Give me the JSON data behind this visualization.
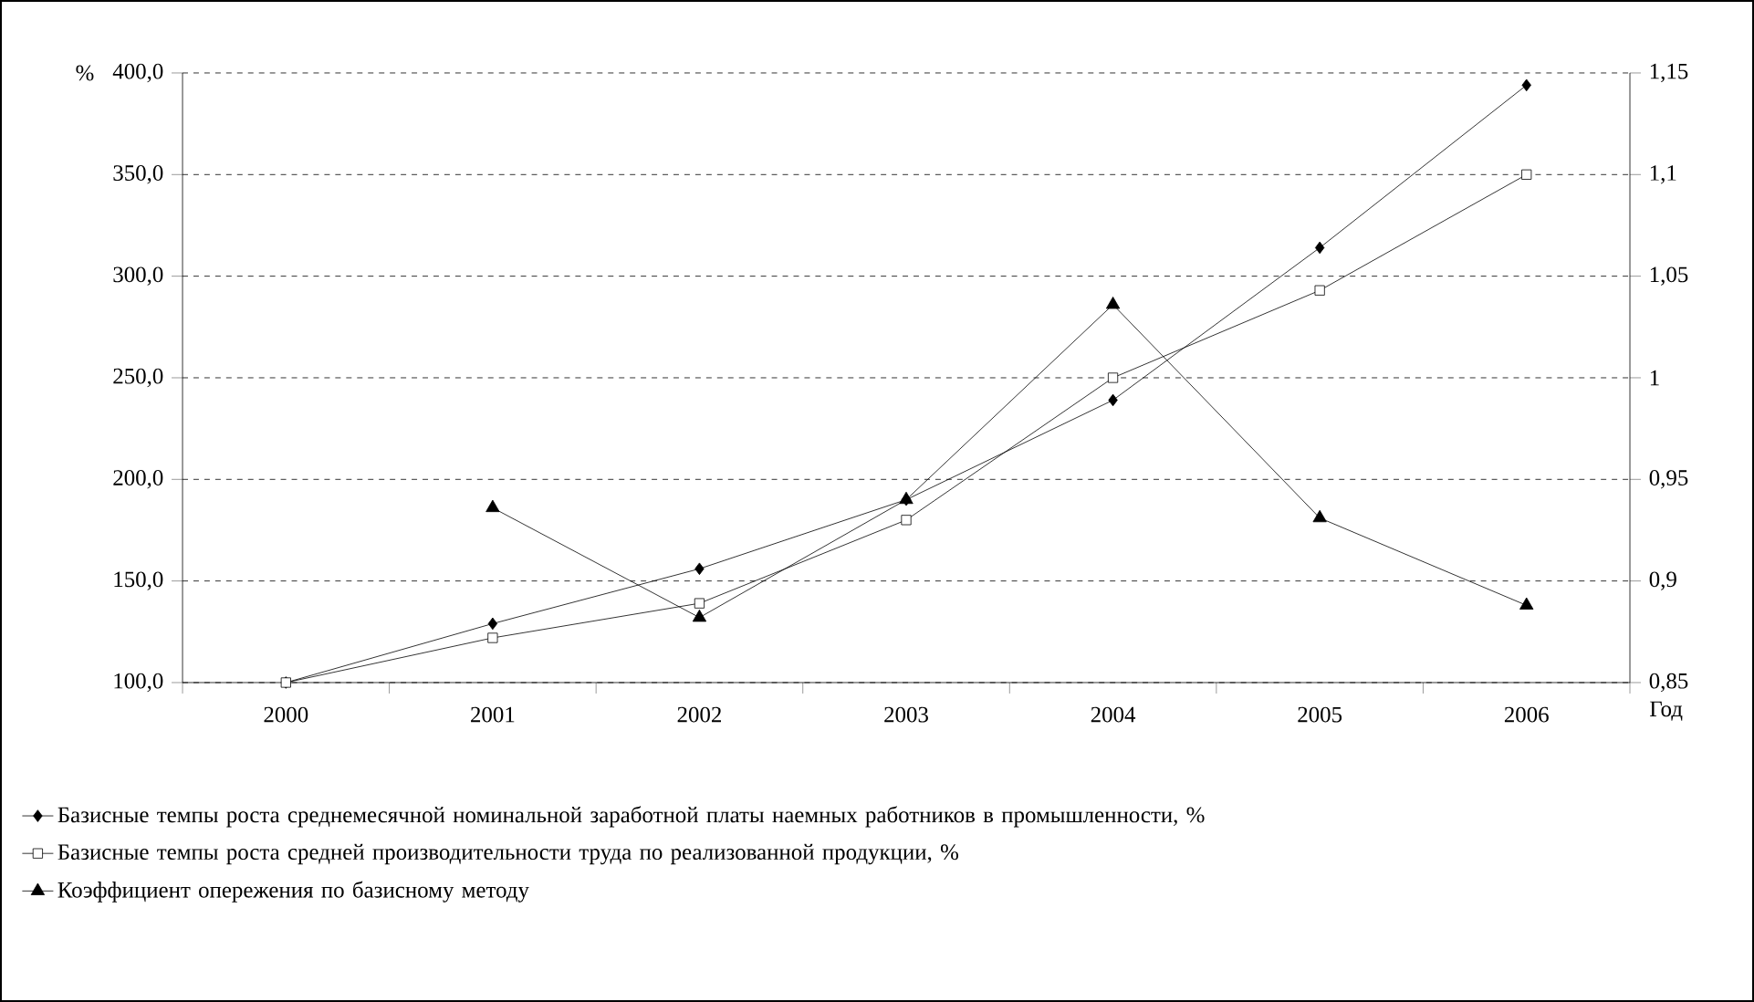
{
  "chart_data": {
    "type": "line",
    "xlabel": "Год",
    "ylabel": "%",
    "categories": [
      "2000",
      "2001",
      "2002",
      "2003",
      "2004",
      "2005",
      "2006"
    ],
    "series": [
      {
        "name": "Базисные темпы роста среднемесячной номинальной заработной платы наемных работников в промышленности, %",
        "color": "#000000",
        "marker": "diamond",
        "values": [
          100,
          129,
          156,
          190,
          239,
          314,
          394
        ]
      },
      {
        "name": "Базисные темпы роста средней производительности труда по реализованной продукции,  %",
        "color": "#000000",
        "marker": "square",
        "values": [
          100,
          122,
          139,
          180,
          250,
          293,
          350
        ]
      },
      {
        "name": "Коэффициент опережения по базисному методу",
        "color": "#000000",
        "marker": "triangle",
        "axis": "y2",
        "values": [
          null,
          0.936,
          0.882,
          0.94,
          1.036,
          0.931,
          0.888
        ]
      }
    ],
    "ylim": [
      100,
      400
    ],
    "yticks": [
      {
        "value": 100,
        "label": "100,0"
      },
      {
        "value": 150,
        "label": "150,0"
      },
      {
        "value": 200,
        "label": "200,0"
      },
      {
        "value": 250,
        "label": "250,0"
      },
      {
        "value": 300,
        "label": "300,0"
      },
      {
        "value": 350,
        "label": "350,0"
      },
      {
        "value": 400,
        "label": "400,0"
      }
    ],
    "y2lim": [
      0.85,
      1.15
    ],
    "y2ticks": [
      {
        "value": 0.85,
        "label": "0,85"
      },
      {
        "value": 0.9,
        "label": "0,9"
      },
      {
        "value": 0.95,
        "label": "0,95"
      },
      1,
      {
        "value": 1.05,
        "label": "1,05"
      },
      {
        "value": 1.1,
        "label": "1,1"
      },
      {
        "value": 1.15,
        "label": "1,15"
      }
    ],
    "grid": "y",
    "legend": "bottom",
    "line_style": "solid"
  }
}
